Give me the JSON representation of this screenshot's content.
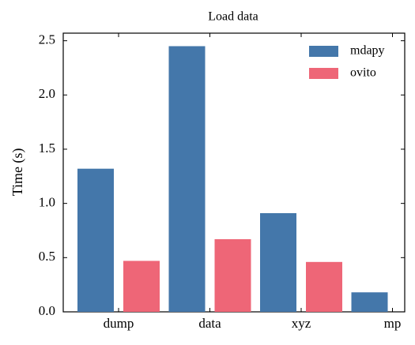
{
  "chart_data": {
    "type": "bar",
    "title": "Load data",
    "y_label": "Time (s)",
    "categories": [
      "dump",
      "data",
      "xyz",
      "mp"
    ],
    "series": [
      {
        "name": "mdapy",
        "color": "#4477aa",
        "values": [
          1.32,
          2.45,
          0.91,
          0.18
        ]
      },
      {
        "name": "ovito",
        "color": "#ee6677",
        "values": [
          0.47,
          0.67,
          0.46,
          null
        ]
      }
    ],
    "ylim": [
      0,
      2.57
    ],
    "yticks": [
      {
        "value": 0,
        "label": "0.0"
      },
      {
        "value": 0.5,
        "label": "0.5"
      },
      {
        "value": 1,
        "label": "1.0"
      },
      {
        "value": 1.5,
        "label": "1.5"
      },
      {
        "value": 2,
        "label": "2.0"
      },
      {
        "value": 2.5,
        "label": "2.5"
      }
    ],
    "legend": "upper right"
  }
}
